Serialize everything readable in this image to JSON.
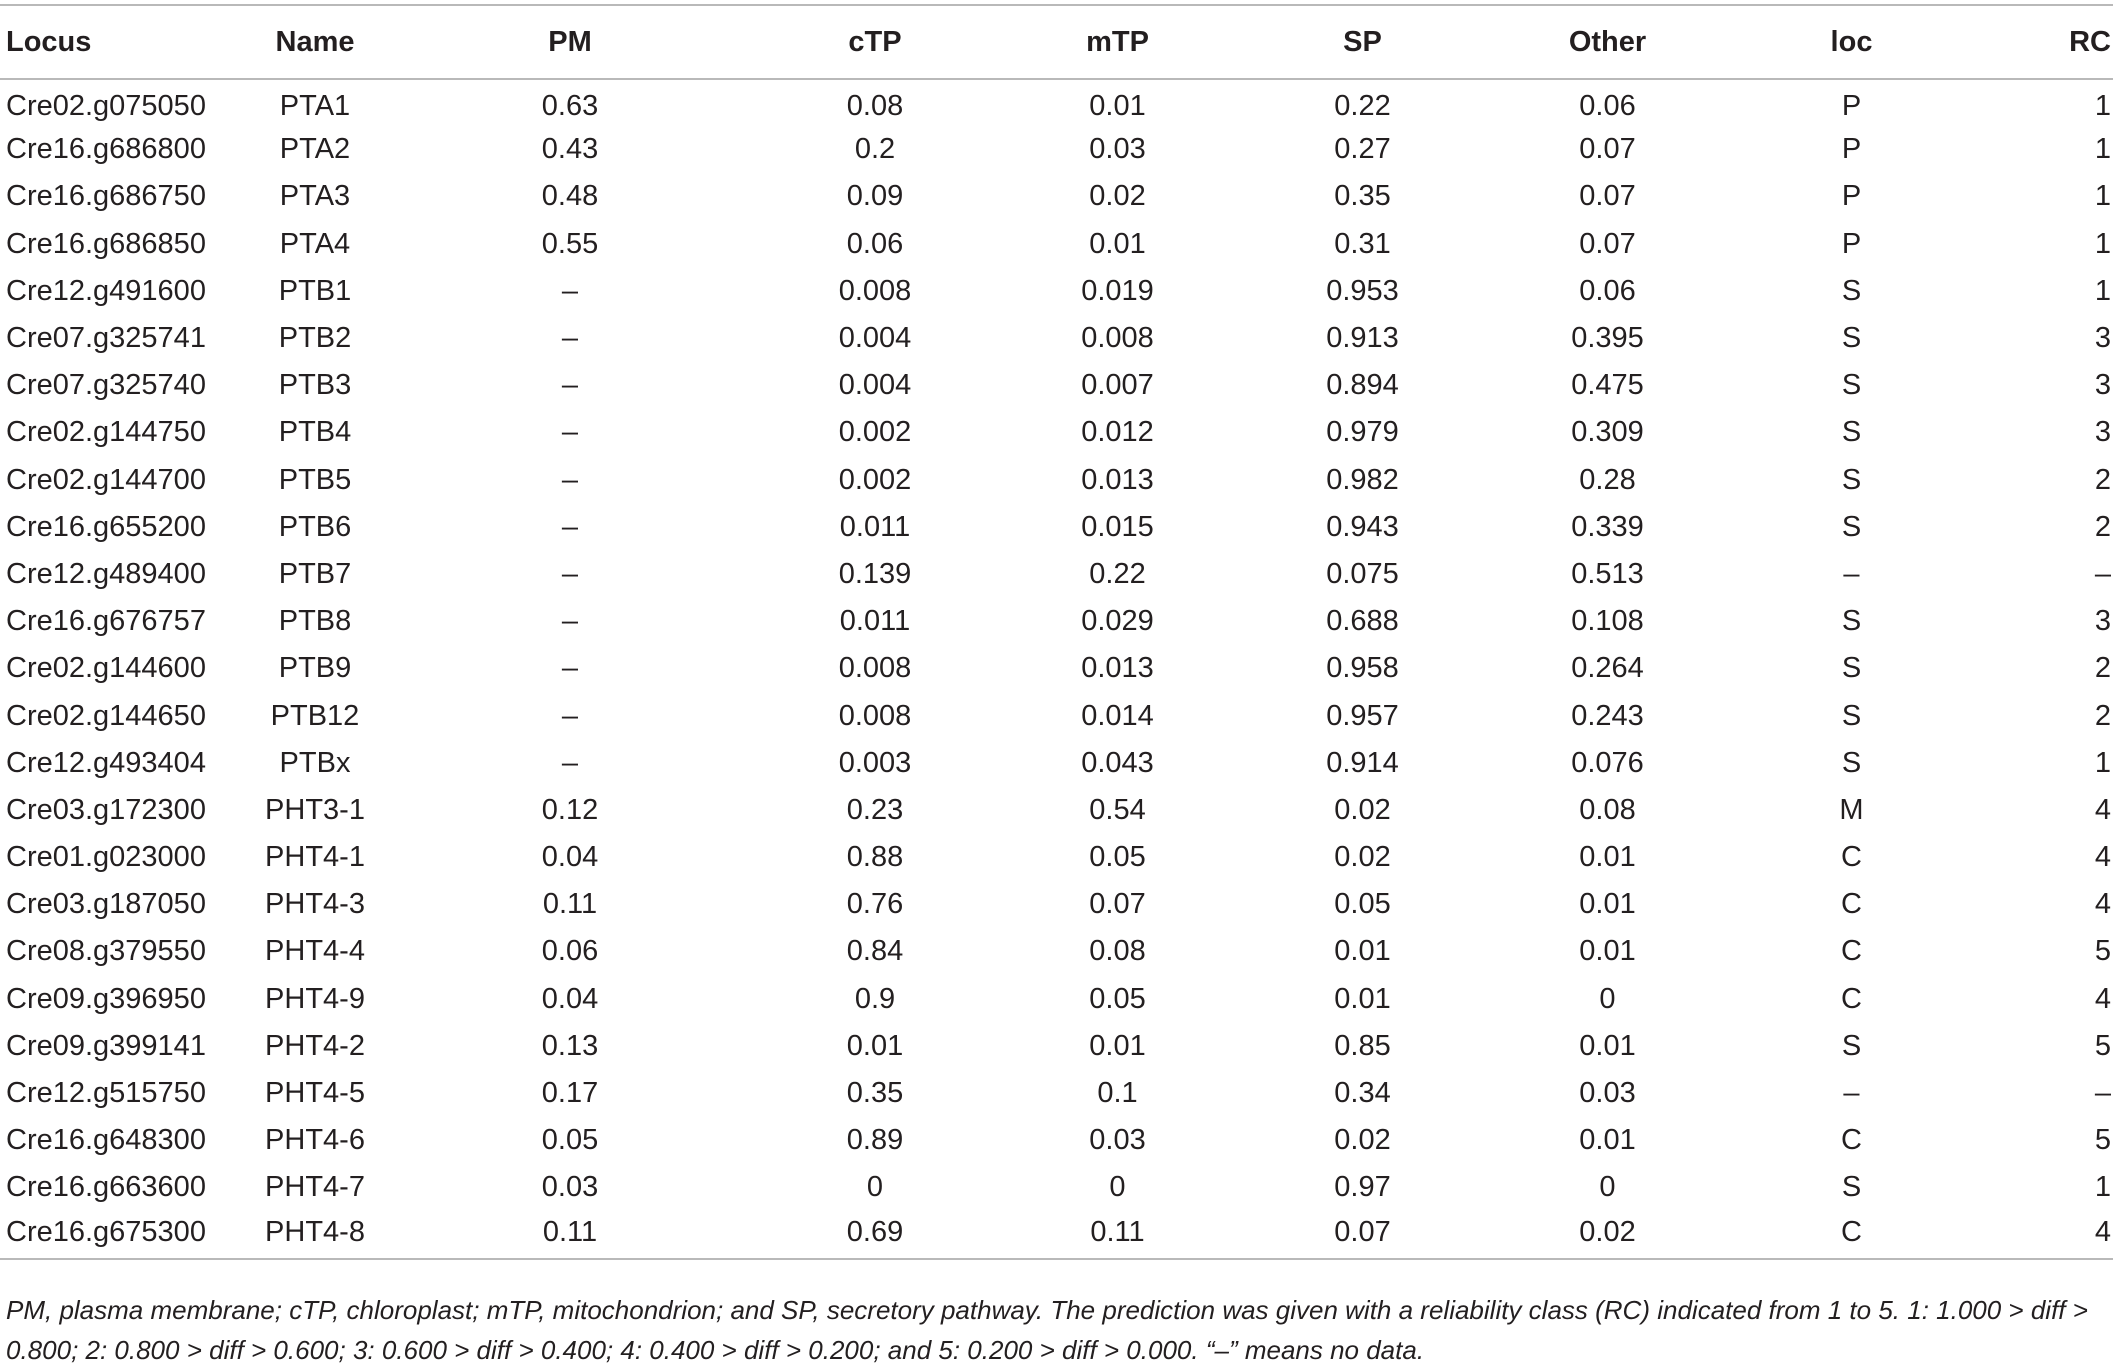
{
  "table": {
    "columns": [
      "Locus",
      "Name",
      "PM",
      "cTP",
      "mTP",
      "SP",
      "Other",
      "loc",
      "RC"
    ],
    "rows": [
      [
        "Cre02.g075050",
        "PTA1",
        "0.63",
        "0.08",
        "0.01",
        "0.22",
        "0.06",
        "P",
        "1"
      ],
      [
        "Cre16.g686800",
        "PTA2",
        "0.43",
        "0.2",
        "0.03",
        "0.27",
        "0.07",
        "P",
        "1"
      ],
      [
        "Cre16.g686750",
        "PTA3",
        "0.48",
        "0.09",
        "0.02",
        "0.35",
        "0.07",
        "P",
        "1"
      ],
      [
        "Cre16.g686850",
        "PTA4",
        "0.55",
        "0.06",
        "0.01",
        "0.31",
        "0.07",
        "P",
        "1"
      ],
      [
        "Cre12.g491600",
        "PTB1",
        "–",
        "0.008",
        "0.019",
        "0.953",
        "0.06",
        "S",
        "1"
      ],
      [
        "Cre07.g325741",
        "PTB2",
        "–",
        "0.004",
        "0.008",
        "0.913",
        "0.395",
        "S",
        "3"
      ],
      [
        "Cre07.g325740",
        "PTB3",
        "–",
        "0.004",
        "0.007",
        "0.894",
        "0.475",
        "S",
        "3"
      ],
      [
        "Cre02.g144750",
        "PTB4",
        "–",
        "0.002",
        "0.012",
        "0.979",
        "0.309",
        "S",
        "3"
      ],
      [
        "Cre02.g144700",
        "PTB5",
        "–",
        "0.002",
        "0.013",
        "0.982",
        "0.28",
        "S",
        "2"
      ],
      [
        "Cre16.g655200",
        "PTB6",
        "–",
        "0.011",
        "0.015",
        "0.943",
        "0.339",
        "S",
        "2"
      ],
      [
        "Cre12.g489400",
        "PTB7",
        "–",
        "0.139",
        "0.22",
        "0.075",
        "0.513",
        "–",
        "–"
      ],
      [
        "Cre16.g676757",
        "PTB8",
        "–",
        "0.011",
        "0.029",
        "0.688",
        "0.108",
        "S",
        "3"
      ],
      [
        "Cre02.g144600",
        "PTB9",
        "–",
        "0.008",
        "0.013",
        "0.958",
        "0.264",
        "S",
        "2"
      ],
      [
        "Cre02.g144650",
        "PTB12",
        "–",
        "0.008",
        "0.014",
        "0.957",
        "0.243",
        "S",
        "2"
      ],
      [
        "Cre12.g493404",
        "PTBx",
        "–",
        "0.003",
        "0.043",
        "0.914",
        "0.076",
        "S",
        "1"
      ],
      [
        "Cre03.g172300",
        "PHT3-1",
        "0.12",
        "0.23",
        "0.54",
        "0.02",
        "0.08",
        "M",
        "4"
      ],
      [
        "Cre01.g023000",
        "PHT4-1",
        "0.04",
        "0.88",
        "0.05",
        "0.02",
        "0.01",
        "C",
        "4"
      ],
      [
        "Cre03.g187050",
        "PHT4-3",
        "0.11",
        "0.76",
        "0.07",
        "0.05",
        "0.01",
        "C",
        "4"
      ],
      [
        "Cre08.g379550",
        "PHT4-4",
        "0.06",
        "0.84",
        "0.08",
        "0.01",
        "0.01",
        "C",
        "5"
      ],
      [
        "Cre09.g396950",
        "PHT4-9",
        "0.04",
        "0.9",
        "0.05",
        "0.01",
        "0",
        "C",
        "4"
      ],
      [
        "Cre09.g399141",
        "PHT4-2",
        "0.13",
        "0.01",
        "0.01",
        "0.85",
        "0.01",
        "S",
        "5"
      ],
      [
        "Cre12.g515750",
        "PHT4-5",
        "0.17",
        "0.35",
        "0.1",
        "0.34",
        "0.03",
        "–",
        "–"
      ],
      [
        "Cre16.g648300",
        "PHT4-6",
        "0.05",
        "0.89",
        "0.03",
        "0.02",
        "0.01",
        "C",
        "5"
      ],
      [
        "Cre16.g663600",
        "PHT4-7",
        "0.03",
        "0",
        "0",
        "0.97",
        "0",
        "S",
        "1"
      ],
      [
        "Cre16.g675300",
        "PHT4-8",
        "0.11",
        "0.69",
        "0.11",
        "0.07",
        "0.02",
        "C",
        "4"
      ]
    ]
  },
  "footnote": "PM, plasma membrane; cTP, chloroplast; mTP, mitochondrion; and SP, secretory pathway. The prediction was given with a reliability class (RC) indicated from 1 to 5. 1: 1.000 > diff > 0.800; 2: 0.800 > diff > 0.600; 3: 0.600 > diff > 0.400; 4: 0.400 > diff > 0.200; and 5: 0.200 > diff > 0.000. “–” means no data."
}
